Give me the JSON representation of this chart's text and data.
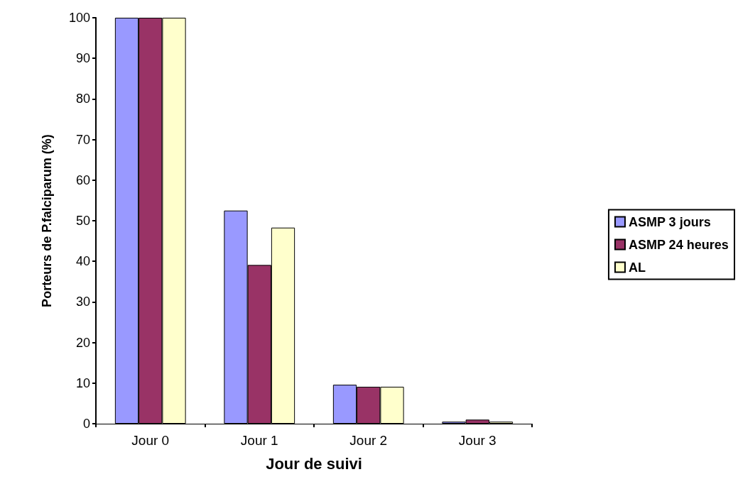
{
  "chart_data": {
    "type": "bar",
    "xlabel": "Jour de suivi",
    "ylabel": "Porteurs de P.falciparum (%)",
    "categories": [
      "Jour 0",
      "Jour 1",
      "Jour 2",
      "Jour 3"
    ],
    "series": [
      {
        "name": "ASMP 3 jours",
        "color": "#9999ff",
        "values": [
          100,
          52.5,
          9.6,
          0.5
        ]
      },
      {
        "name": "ASMP 24 heures",
        "color": "#993366",
        "values": [
          100,
          39.1,
          9.1,
          1
        ]
      },
      {
        "name": "AL",
        "color": "#ffffcc",
        "values": [
          100,
          48.3,
          9.1,
          0.5
        ]
      }
    ],
    "ylim": [
      0,
      100
    ],
    "yticks": [
      0,
      10,
      20,
      30,
      40,
      50,
      60,
      70,
      80,
      90,
      100
    ],
    "grid": false,
    "legend": "right"
  }
}
